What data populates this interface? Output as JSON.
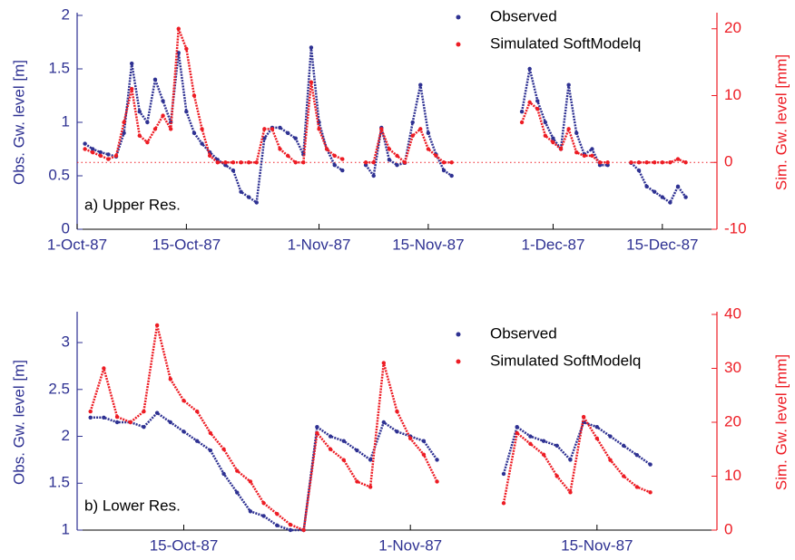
{
  "chart_data": [
    {
      "type": "scatter",
      "annotation": "a) Upper Res.",
      "y_label": "Obs. Gw. level [m]",
      "y2_label": "Sim. Gw. level [mm]",
      "legend": "upper right",
      "xlim": [
        "1987-10-01",
        "1987-12-22"
      ],
      "xticks": [
        {
          "value": "1987-10-01",
          "label": "1-Oct-87"
        },
        {
          "value": "1987-10-15",
          "label": "15-Oct-87"
        },
        {
          "value": "1987-11-01",
          "label": "1-Nov-87"
        },
        {
          "value": "1987-11-15",
          "label": "15-Nov-87"
        },
        {
          "value": "1987-12-01",
          "label": "1-Dec-87"
        },
        {
          "value": "1987-12-15",
          "label": "15-Dec-87"
        }
      ],
      "ylim": [
        0,
        2
      ],
      "yticks": [
        0,
        0.5,
        1,
        1.5,
        2
      ],
      "y2lim": [
        -10,
        22
      ],
      "y2ticks": [
        -10,
        0,
        10,
        20
      ],
      "reference_line": {
        "value": 0,
        "axis": "y2"
      },
      "x": [
        "1987-10-02",
        "1987-10-03",
        "1987-10-04",
        "1987-10-05",
        "1987-10-06",
        "1987-10-07",
        "1987-10-08",
        "1987-10-09",
        "1987-10-10",
        "1987-10-11",
        "1987-10-12",
        "1987-10-13",
        "1987-10-14",
        "1987-10-15",
        "1987-10-16",
        "1987-10-17",
        "1987-10-18",
        "1987-10-19",
        "1987-10-20",
        "1987-10-21",
        "1987-10-22",
        "1987-10-23",
        "1987-10-24",
        "1987-10-25",
        "1987-10-26",
        "1987-10-27",
        "1987-10-28",
        "1987-10-29",
        "1987-10-30",
        "1987-10-31",
        "1987-11-01",
        "1987-11-02",
        "1987-11-03",
        "1987-11-04",
        "1987-11-05",
        "1987-11-06",
        "1987-11-07",
        "1987-11-08",
        "1987-11-09",
        "1987-11-10",
        "1987-11-11",
        "1987-11-12",
        "1987-11-13",
        "1987-11-14",
        "1987-11-15",
        "1987-11-16",
        "1987-11-17",
        "1987-11-18",
        "1987-11-19",
        "1987-11-20",
        "1987-11-21",
        "1987-11-22",
        "1987-11-23",
        "1987-11-24",
        "1987-11-25",
        "1987-11-26",
        "1987-11-27",
        "1987-11-28",
        "1987-11-29",
        "1987-11-30",
        "1987-12-01",
        "1987-12-02",
        "1987-12-03",
        "1987-12-04",
        "1987-12-05",
        "1987-12-06",
        "1987-12-07",
        "1987-12-08",
        "1987-12-09",
        "1987-12-10",
        "1987-12-11",
        "1987-12-12",
        "1987-12-13",
        "1987-12-14",
        "1987-12-15",
        "1987-12-16",
        "1987-12-17",
        "1987-12-18"
      ],
      "series": [
        {
          "name": "Observed",
          "color": "#2e3192",
          "values": [
            0.8,
            0.75,
            0.72,
            0.7,
            0.68,
            0.9,
            1.55,
            1.1,
            1.0,
            1.4,
            1.2,
            1.0,
            1.65,
            1.1,
            0.9,
            0.8,
            0.72,
            0.65,
            0.6,
            0.55,
            0.35,
            0.3,
            0.25,
            0.85,
            0.95,
            0.95,
            0.9,
            0.85,
            0.7,
            1.7,
            1.0,
            0.75,
            0.6,
            0.55,
            null,
            null,
            0.6,
            0.5,
            0.95,
            0.65,
            0.6,
            0.62,
            1.0,
            1.35,
            0.9,
            0.7,
            0.55,
            0.5,
            null,
            null,
            null,
            null,
            null,
            null,
            null,
            null,
            1.1,
            1.5,
            1.2,
            1.0,
            0.85,
            0.75,
            1.35,
            0.9,
            0.7,
            0.75,
            0.6,
            0.6,
            null,
            null,
            0.62,
            0.55,
            0.4,
            0.35,
            0.3,
            0.25,
            0.4,
            0.3
          ]
        },
        {
          "name": "Simulated SoftModelq",
          "color": "#ed1c24",
          "axis": "y2",
          "values": [
            2,
            1.5,
            1,
            0.5,
            1,
            6,
            11,
            4,
            3,
            5,
            7,
            5,
            20,
            17,
            10,
            5,
            1,
            0,
            0,
            0,
            0,
            0,
            0,
            5,
            5,
            2,
            1,
            0,
            0,
            12,
            5,
            2,
            1,
            0.5,
            null,
            null,
            0,
            0,
            5,
            2,
            1,
            0,
            4,
            5,
            2,
            1,
            0,
            0,
            null,
            null,
            null,
            null,
            null,
            null,
            null,
            null,
            6,
            9,
            8,
            4,
            3,
            2,
            5,
            1.5,
            1,
            1,
            0,
            0,
            null,
            null,
            0,
            0,
            0,
            0,
            0,
            0,
            0.5,
            0
          ]
        }
      ]
    },
    {
      "type": "scatter",
      "annotation": "b) Lower Res.",
      "y_label": "Obs. Gw. level [m]",
      "y2_label": "Sim. Gw. level [mm]",
      "legend": "upper right",
      "xlim": [
        "1987-10-07",
        "1987-11-24"
      ],
      "xticks": [
        {
          "value": "1987-10-15",
          "label": "15-Oct-87"
        },
        {
          "value": "1987-11-01",
          "label": "1-Nov-87"
        },
        {
          "value": "1987-11-15",
          "label": "15-Nov-87"
        }
      ],
      "ylim": [
        1,
        3.3
      ],
      "yticks": [
        1,
        1.5,
        2,
        2.5,
        3
      ],
      "y2lim": [
        0,
        40
      ],
      "y2ticks": [
        0,
        10,
        20,
        30,
        40
      ],
      "x": [
        "1987-10-08",
        "1987-10-09",
        "1987-10-10",
        "1987-10-11",
        "1987-10-12",
        "1987-10-13",
        "1987-10-14",
        "1987-10-15",
        "1987-10-16",
        "1987-10-17",
        "1987-10-18",
        "1987-10-19",
        "1987-10-20",
        "1987-10-21",
        "1987-10-22",
        "1987-10-23",
        "1987-10-24",
        "1987-10-25",
        "1987-10-26",
        "1987-10-27",
        "1987-10-28",
        "1987-10-29",
        "1987-10-30",
        "1987-10-31",
        "1987-11-01",
        "1987-11-02",
        "1987-11-03",
        "1987-11-04",
        "1987-11-05",
        "1987-11-06",
        "1987-11-07",
        "1987-11-08",
        "1987-11-09",
        "1987-11-10",
        "1987-11-11",
        "1987-11-12",
        "1987-11-13",
        "1987-11-14",
        "1987-11-15",
        "1987-11-16",
        "1987-11-17",
        "1987-11-18",
        "1987-11-19"
      ],
      "series": [
        {
          "name": "Observed",
          "color": "#2e3192",
          "values": [
            2.2,
            2.2,
            2.15,
            2.15,
            2.1,
            2.25,
            2.15,
            2.05,
            1.95,
            1.85,
            1.6,
            1.4,
            1.2,
            1.15,
            1.05,
            1.0,
            1.0,
            2.1,
            2.0,
            1.95,
            1.85,
            1.75,
            2.15,
            2.05,
            2.0,
            1.95,
            1.75,
            null,
            null,
            null,
            null,
            1.6,
            2.1,
            2.0,
            1.95,
            1.9,
            1.75,
            2.15,
            2.1,
            2.0,
            1.9,
            1.8,
            1.7
          ]
        },
        {
          "name": "Simulated SoftModelq",
          "color": "#ed1c24",
          "axis": "y2",
          "values": [
            22,
            30,
            21,
            20,
            22,
            38,
            28,
            24,
            22,
            18,
            15,
            11,
            9,
            5,
            3,
            1,
            0,
            18,
            15,
            13,
            9,
            8,
            31,
            22,
            17,
            14,
            9,
            null,
            null,
            null,
            null,
            5,
            18,
            16,
            14,
            10,
            7,
            21,
            17,
            13,
            10,
            8,
            7
          ]
        }
      ]
    }
  ]
}
